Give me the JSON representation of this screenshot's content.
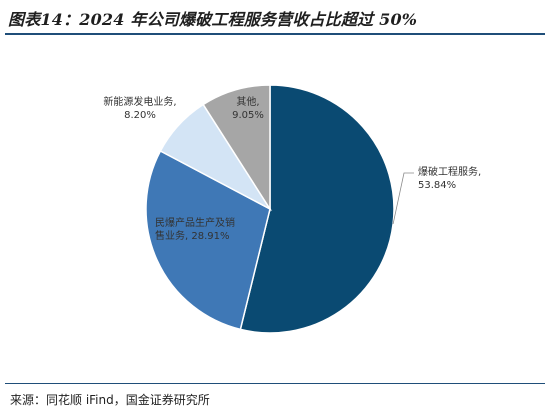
{
  "title": "图表14：2024 年公司爆破工程服务营收占比超过 50%",
  "source": "来源：同花顺 iFind，国金证券研究所",
  "chart_data": {
    "type": "pie",
    "start_angle_deg": 0,
    "direction": "clockwise",
    "slices": [
      {
        "name": "爆破工程服务",
        "value": 53.84,
        "value_label": "53.84%",
        "color": "#0a4a72",
        "label_lines": [
          "爆破工程服务,",
          "53.84%"
        ]
      },
      {
        "name": "民爆产品生产及销售业务",
        "value": 28.91,
        "value_label": "28.91%",
        "color": "#3f78b6",
        "label_lines": [
          "民爆产品生产及销",
          "售业务, 28.91%"
        ]
      },
      {
        "name": "新能源发电业务",
        "value": 8.2,
        "value_label": "8.20%",
        "color": "#d3e4f5",
        "label_lines": [
          "新能源发电业务,",
          "8.20%"
        ]
      },
      {
        "name": "其他",
        "value": 9.05,
        "value_label": "9.05%",
        "color": "#a6a6a6",
        "label_lines": [
          "其他,",
          "9.05%"
        ]
      }
    ]
  }
}
